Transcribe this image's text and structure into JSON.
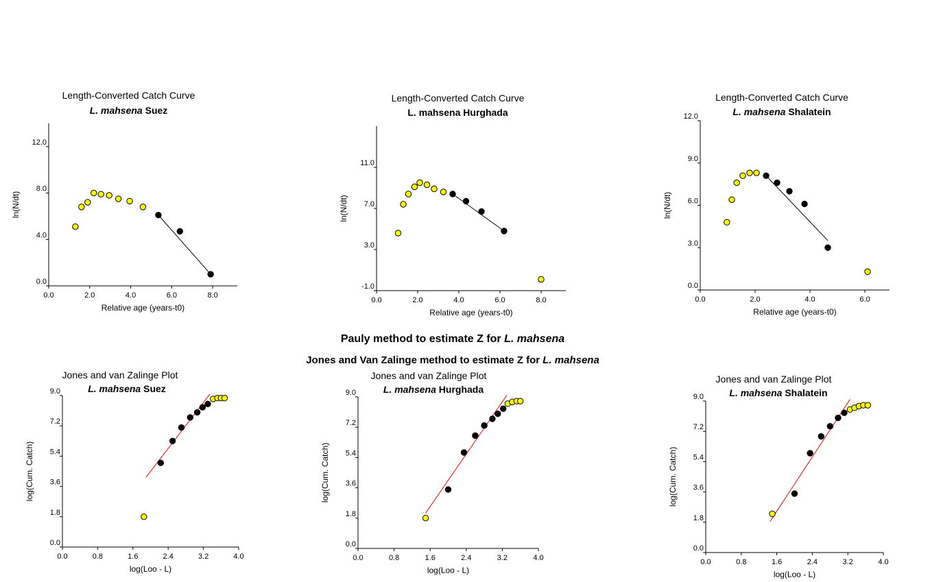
{
  "captions": {
    "pauly": {
      "text": "Pauly method to estimate Z for ",
      "species": "L. mahsena"
    },
    "jones": {
      "text": "Jones and Van Zalinge method to estimate Z for ",
      "species": "L. mahsena"
    }
  },
  "chart_data": [
    {
      "id": "cc-suez",
      "type": "scatter",
      "title": "Length-Converted Catch Curve",
      "subtitle_species": "L. mahsena",
      "subtitle_location": "Suez",
      "subtitle_italic_species": true,
      "xlabel": "Relative age (years-t0)",
      "ylabel": "ln(N/dt)",
      "xlim": [
        0,
        9.2
      ],
      "ylim": [
        0,
        14
      ],
      "xticks": [
        {
          "v": 0,
          "label": "0.0"
        },
        {
          "v": 2,
          "label": "2.0"
        },
        {
          "v": 4,
          "label": "4.0"
        },
        {
          "v": 6,
          "label": "6.0"
        },
        {
          "v": 8,
          "label": "8.0"
        }
      ],
      "yticks": [
        {
          "v": 0,
          "label": "0.0"
        },
        {
          "v": 4,
          "label": "4.0"
        },
        {
          "v": 8,
          "label": "8.0"
        },
        {
          "v": 12,
          "label": "12.0"
        }
      ],
      "series": [
        {
          "name": "excluded",
          "color": "#ffff00",
          "points": [
            [
              1.3,
              5.1
            ],
            [
              1.6,
              6.8
            ],
            [
              1.9,
              7.2
            ],
            [
              2.2,
              8.0
            ],
            [
              2.55,
              7.9
            ],
            [
              2.95,
              7.8
            ],
            [
              3.4,
              7.5
            ],
            [
              3.95,
              7.3
            ],
            [
              4.6,
              6.8
            ]
          ]
        },
        {
          "name": "used",
          "color": "#000000",
          "points": [
            [
              5.35,
              6.1
            ],
            [
              6.4,
              4.7
            ],
            [
              7.9,
              1.0
            ]
          ]
        }
      ],
      "fit": {
        "color": "#000000",
        "from": [
          5.35,
          6.1
        ],
        "to": [
          7.9,
          1.0
        ]
      }
    },
    {
      "id": "cc-hurghada",
      "type": "scatter",
      "title": "Length-Converted Catch Curve",
      "subtitle_species": "L. mahsena",
      "subtitle_location": "Hurghada",
      "subtitle_italic_species": false,
      "xlabel": "Relative age (years-t0)",
      "ylabel": "ln(N/dt)",
      "xlim": [
        0,
        9.2
      ],
      "ylim": [
        -1,
        15
      ],
      "xticks": [
        {
          "v": 0,
          "label": "0.0"
        },
        {
          "v": 2,
          "label": "2.0"
        },
        {
          "v": 4,
          "label": "4.0"
        },
        {
          "v": 6,
          "label": "6.0"
        },
        {
          "v": 8,
          "label": "8.0"
        }
      ],
      "yticks": [
        {
          "v": -1,
          "label": "-1.0"
        },
        {
          "v": 3,
          "label": "3.0"
        },
        {
          "v": 7,
          "label": "7.0"
        },
        {
          "v": 11,
          "label": "11.0"
        }
      ],
      "series": [
        {
          "name": "excluded",
          "color": "#ffff00",
          "points": [
            [
              1.05,
              4.6
            ],
            [
              1.3,
              7.4
            ],
            [
              1.55,
              8.4
            ],
            [
              1.85,
              9.1
            ],
            [
              2.1,
              9.5
            ],
            [
              2.45,
              9.3
            ],
            [
              2.8,
              8.9
            ],
            [
              3.25,
              8.6
            ],
            [
              8.0,
              0.1
            ]
          ]
        },
        {
          "name": "used",
          "color": "#000000",
          "points": [
            [
              3.7,
              8.4
            ],
            [
              4.35,
              7.7
            ],
            [
              5.1,
              6.7
            ],
            [
              6.2,
              4.8
            ]
          ]
        }
      ],
      "fit": {
        "color": "#000000",
        "from": [
          3.7,
          8.4
        ],
        "to": [
          6.2,
          4.8
        ]
      }
    },
    {
      "id": "cc-shalatein",
      "type": "scatter",
      "title": "Length-Converted Catch Curve",
      "subtitle_species": "L. mahsena",
      "subtitle_location": "Shalatein",
      "subtitle_italic_species": true,
      "xlabel": "Relative age (years-t0)",
      "ylabel": "ln(N/dt)",
      "xlim": [
        0,
        6.9
      ],
      "ylim": [
        0,
        12
      ],
      "xticks": [
        {
          "v": 0,
          "label": "0.0"
        },
        {
          "v": 2,
          "label": "2.0"
        },
        {
          "v": 4,
          "label": "4.0"
        },
        {
          "v": 6,
          "label": "6.0"
        }
      ],
      "yticks": [
        {
          "v": 0,
          "label": "0.0"
        },
        {
          "v": 3,
          "label": "3.0"
        },
        {
          "v": 6,
          "label": "6.0"
        },
        {
          "v": 9,
          "label": "9.0"
        },
        {
          "v": 12,
          "label": "12.0"
        }
      ],
      "series": [
        {
          "name": "excluded",
          "color": "#ffff00",
          "points": [
            [
              0.97,
              4.8
            ],
            [
              1.15,
              6.4
            ],
            [
              1.33,
              7.6
            ],
            [
              1.55,
              8.1
            ],
            [
              1.8,
              8.3
            ],
            [
              2.05,
              8.3
            ],
            [
              6.1,
              1.3
            ]
          ]
        },
        {
          "name": "used",
          "color": "#000000",
          "points": [
            [
              2.4,
              8.1
            ],
            [
              2.8,
              7.6
            ],
            [
              3.25,
              7.0
            ],
            [
              3.8,
              6.1
            ],
            [
              4.65,
              3.0
            ]
          ]
        }
      ],
      "fit": {
        "color": "#000000",
        "from": [
          2.4,
          8.1
        ],
        "to": [
          4.65,
          3.5
        ]
      }
    },
    {
      "id": "jvz-suez",
      "type": "scatter",
      "title": "Jones and van Zalinge Plot",
      "subtitle_species": "L. mahsena",
      "subtitle_location": "Suez",
      "subtitle_italic_species": true,
      "xlabel": "log(Loo - L)",
      "ylabel": "log(Cum. Catch)",
      "xlim": [
        0,
        4
      ],
      "ylim": [
        0,
        9
      ],
      "xticks": [
        {
          "v": 0,
          "label": "0.0"
        },
        {
          "v": 0.8,
          "label": "0.8"
        },
        {
          "v": 1.6,
          "label": "1.6"
        },
        {
          "v": 2.4,
          "label": "2.4"
        },
        {
          "v": 3.2,
          "label": "3.2"
        },
        {
          "v": 4.0,
          "label": "4.0"
        }
      ],
      "yticks": [
        {
          "v": 0,
          "label": "0.0"
        },
        {
          "v": 1.8,
          "label": "1.8"
        },
        {
          "v": 3.6,
          "label": "3.6"
        },
        {
          "v": 5.4,
          "label": "5.4"
        },
        {
          "v": 7.2,
          "label": "7.2"
        },
        {
          "v": 9.0,
          "label": "9.0"
        }
      ],
      "series": [
        {
          "name": "excluded",
          "color": "#ffff00",
          "points": [
            [
              1.85,
              1.8
            ],
            [
              3.42,
              8.8
            ],
            [
              3.52,
              8.85
            ],
            [
              3.6,
              8.85
            ],
            [
              3.68,
              8.85
            ]
          ]
        },
        {
          "name": "used",
          "color": "#000000",
          "points": [
            [
              2.23,
              5.0
            ],
            [
              2.5,
              6.3
            ],
            [
              2.7,
              7.1
            ],
            [
              2.9,
              7.7
            ],
            [
              3.06,
              8.0
            ],
            [
              3.18,
              8.3
            ],
            [
              3.3,
              8.5
            ]
          ]
        }
      ],
      "fit": {
        "color": "#ff0000",
        "from": [
          1.9,
          4.15
        ],
        "to": [
          3.35,
          9.1
        ]
      }
    },
    {
      "id": "jvz-hurghada",
      "type": "scatter",
      "title": "Jones and van Zalinge Plot",
      "subtitle_species": "L. mahsena",
      "subtitle_location": "Hurghada",
      "subtitle_italic_species": true,
      "xlabel": "log(Loo - L)",
      "ylabel": "log(Cum. Catch)",
      "xlim": [
        0,
        4
      ],
      "ylim": [
        0,
        9
      ],
      "xticks": [
        {
          "v": 0,
          "label": "0.0"
        },
        {
          "v": 0.8,
          "label": "0.8"
        },
        {
          "v": 1.6,
          "label": "1.6"
        },
        {
          "v": 2.4,
          "label": "2.4"
        },
        {
          "v": 3.2,
          "label": "3.2"
        },
        {
          "v": 4.0,
          "label": "4.0"
        }
      ],
      "yticks": [
        {
          "v": 0,
          "label": "0.0"
        },
        {
          "v": 1.8,
          "label": "1.8"
        },
        {
          "v": 3.6,
          "label": "3.6"
        },
        {
          "v": 5.4,
          "label": "5.4"
        },
        {
          "v": 7.2,
          "label": "7.2"
        },
        {
          "v": 9.0,
          "label": "9.0"
        }
      ],
      "series": [
        {
          "name": "excluded",
          "color": "#ffff00",
          "points": [
            [
              1.5,
              1.8
            ],
            [
              3.32,
              8.6
            ],
            [
              3.42,
              8.7
            ],
            [
              3.52,
              8.75
            ],
            [
              3.6,
              8.75
            ]
          ]
        },
        {
          "name": "used",
          "color": "#000000",
          "points": [
            [
              2.0,
              3.5
            ],
            [
              2.35,
              5.7
            ],
            [
              2.6,
              6.7
            ],
            [
              2.8,
              7.3
            ],
            [
              2.98,
              7.7
            ],
            [
              3.1,
              8.0
            ],
            [
              3.22,
              8.3
            ]
          ]
        }
      ],
      "fit": {
        "color": "#ff0000",
        "from": [
          1.5,
          2.1
        ],
        "to": [
          3.3,
          9.1
        ]
      }
    },
    {
      "id": "jvz-shalatein",
      "type": "scatter",
      "title": "Jones and van Zalinge Plot",
      "subtitle_species": "L. mahsena",
      "subtitle_location": "Shalatein",
      "subtitle_italic_species": true,
      "xlabel": "log(Loo - L)",
      "ylabel": "log(Cum. Catch)",
      "xlim": [
        0,
        4
      ],
      "ylim": [
        0,
        9
      ],
      "xticks": [
        {
          "v": 0,
          "label": "0.0"
        },
        {
          "v": 0.8,
          "label": "0.8"
        },
        {
          "v": 1.6,
          "label": "1.6"
        },
        {
          "v": 2.4,
          "label": "2.4"
        },
        {
          "v": 3.2,
          "label": "3.2"
        },
        {
          "v": 4.0,
          "label": "4.0"
        }
      ],
      "yticks": [
        {
          "v": 0,
          "label": "0.0"
        },
        {
          "v": 1.8,
          "label": "1.8"
        },
        {
          "v": 3.6,
          "label": "3.6"
        },
        {
          "v": 5.4,
          "label": "5.4"
        },
        {
          "v": 7.2,
          "label": "7.2"
        },
        {
          "v": 9.0,
          "label": "9.0"
        }
      ],
      "series": [
        {
          "name": "excluded",
          "color": "#ffff00",
          "points": [
            [
              1.5,
              2.3
            ],
            [
              3.25,
              8.5
            ],
            [
              3.35,
              8.6
            ],
            [
              3.45,
              8.7
            ],
            [
              3.55,
              8.75
            ],
            [
              3.65,
              8.75
            ]
          ]
        },
        {
          "name": "used",
          "color": "#000000",
          "points": [
            [
              2.0,
              3.5
            ],
            [
              2.35,
              5.9
            ],
            [
              2.6,
              6.9
            ],
            [
              2.8,
              7.5
            ],
            [
              2.98,
              8.0
            ],
            [
              3.12,
              8.3
            ]
          ]
        }
      ],
      "fit": {
        "color": "#ff0000",
        "from": [
          1.45,
          1.85
        ],
        "to": [
          3.25,
          9.1
        ]
      }
    }
  ]
}
